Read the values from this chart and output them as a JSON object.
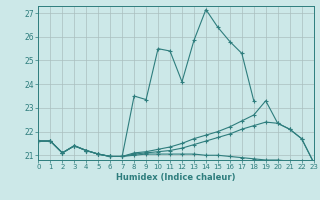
{
  "title": "",
  "xlabel": "Humidex (Indice chaleur)",
  "ylabel": "",
  "background_color": "#cce8e8",
  "grid_color": "#b8d8d8",
  "line_color": "#2e7d7d",
  "x_min": 0,
  "x_max": 23,
  "y_min": 20.8,
  "y_max": 27.3,
  "yticks": [
    21,
    22,
    23,
    24,
    25,
    26,
    27
  ],
  "xticks": [
    0,
    1,
    2,
    3,
    4,
    5,
    6,
    7,
    8,
    9,
    10,
    11,
    12,
    13,
    14,
    15,
    16,
    17,
    18,
    19,
    20,
    21,
    22,
    23
  ],
  "lines": [
    {
      "x": [
        0,
        1,
        2,
        3,
        4,
        5,
        6,
        7,
        8,
        9,
        10,
        11,
        12,
        13,
        14,
        15,
        16,
        17,
        18,
        19,
        20,
        21,
        22,
        23
      ],
      "y": [
        21.6,
        21.6,
        21.1,
        21.4,
        21.2,
        21.05,
        20.95,
        20.95,
        23.5,
        23.35,
        25.5,
        25.4,
        24.1,
        25.85,
        27.15,
        26.4,
        25.8,
        25.3,
        23.3,
        null,
        null,
        null,
        null,
        null
      ]
    },
    {
      "x": [
        0,
        1,
        2,
        3,
        4,
        5,
        6,
        7,
        8,
        9,
        10,
        11,
        12,
        13,
        14,
        15,
        16,
        17,
        18,
        19,
        20,
        21,
        22,
        23
      ],
      "y": [
        21.6,
        21.6,
        21.1,
        21.4,
        21.2,
        21.05,
        20.95,
        20.95,
        21.1,
        21.15,
        21.25,
        21.35,
        21.5,
        21.7,
        21.85,
        22.0,
        22.2,
        22.45,
        22.7,
        23.3,
        22.35,
        22.1,
        21.7,
        20.7
      ]
    },
    {
      "x": [
        0,
        1,
        2,
        3,
        4,
        5,
        6,
        7,
        8,
        9,
        10,
        11,
        12,
        13,
        14,
        15,
        16,
        17,
        18,
        19,
        20,
        21,
        22,
        23
      ],
      "y": [
        21.6,
        21.6,
        21.1,
        21.4,
        21.2,
        21.05,
        20.95,
        20.95,
        21.05,
        21.1,
        21.15,
        21.2,
        21.3,
        21.45,
        21.6,
        21.75,
        21.9,
        22.1,
        22.25,
        22.4,
        22.35,
        22.1,
        21.7,
        20.7
      ]
    },
    {
      "x": [
        0,
        1,
        2,
        3,
        4,
        5,
        6,
        7,
        8,
        9,
        10,
        11,
        12,
        13,
        14,
        15,
        16,
        17,
        18,
        19,
        20,
        21,
        22,
        23
      ],
      "y": [
        21.6,
        21.6,
        21.1,
        21.4,
        21.2,
        21.05,
        20.95,
        20.95,
        21.0,
        21.05,
        21.05,
        21.05,
        21.05,
        21.05,
        21.0,
        21.0,
        20.95,
        20.9,
        20.85,
        20.8,
        20.8,
        20.75,
        20.75,
        20.7
      ]
    }
  ]
}
